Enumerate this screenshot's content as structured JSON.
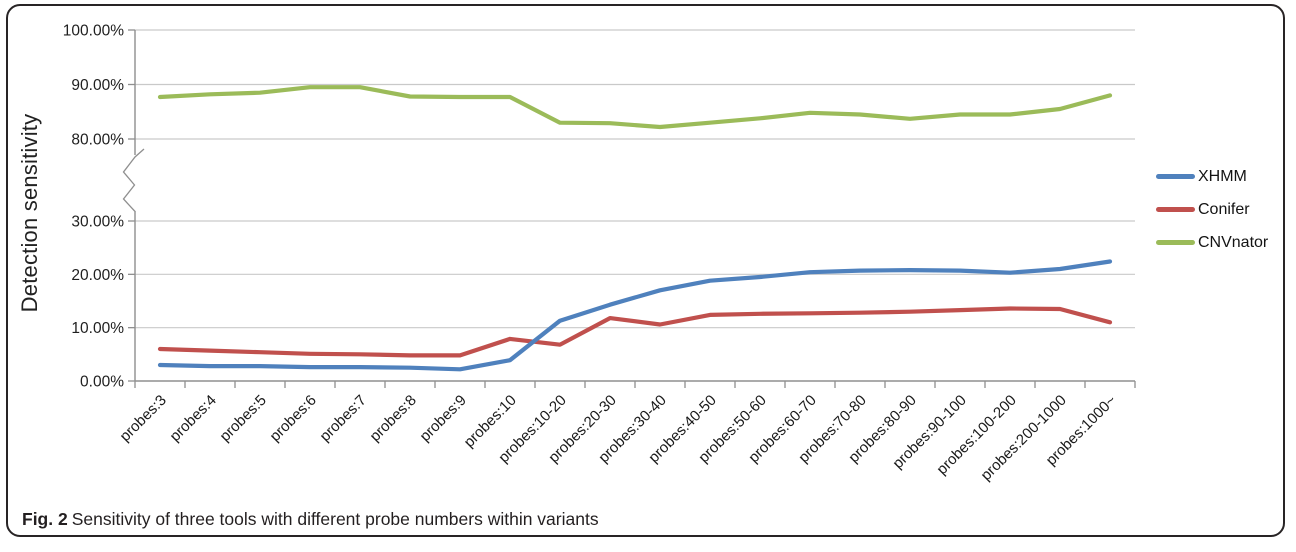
{
  "figure": {
    "caption_label": "Fig. 2",
    "caption_text": "Sensitivity of three tools with different probe numbers within variants"
  },
  "chart_data": {
    "type": "line",
    "title": "",
    "xlabel": "",
    "ylabel": "Detection sensitivity",
    "grid": true,
    "legend_position": "right",
    "axis_break": {
      "between_percent": [
        30,
        80
      ]
    },
    "y_ticks": [
      {
        "value": 0,
        "label": "0.00%"
      },
      {
        "value": 10,
        "label": "10.00%"
      },
      {
        "value": 20,
        "label": "20.00%"
      },
      {
        "value": 30,
        "label": "30.00%"
      },
      {
        "value": 80,
        "label": "80.00%"
      },
      {
        "value": 90,
        "label": "90.00%"
      },
      {
        "value": 100,
        "label": "100.00%"
      }
    ],
    "categories": [
      "probes:3",
      "probes:4",
      "probes:5",
      "probes:6",
      "probes:7",
      "probes:8",
      "probes:9",
      "probes:10",
      "probes:10-20",
      "probes:20-30",
      "probes:30-40",
      "probes:40-50",
      "probes:50-60",
      "probes:60-70",
      "probes:70-80",
      "probes:80-90",
      "probes:90-100",
      "probes:100-200",
      "probes:200-1000",
      "probes:1000~"
    ],
    "series": [
      {
        "name": "XHMM",
        "color": "#4F81BD",
        "values": [
          3.0,
          2.8,
          2.8,
          2.6,
          2.6,
          2.5,
          2.2,
          3.9,
          11.3,
          14.3,
          17.0,
          18.8,
          19.5,
          20.4,
          20.7,
          20.8,
          20.7,
          20.3,
          21.0,
          22.4
        ]
      },
      {
        "name": "Conifer",
        "color": "#C0504D",
        "values": [
          6.0,
          5.7,
          5.4,
          5.1,
          5.0,
          4.8,
          4.8,
          7.9,
          6.8,
          11.8,
          10.6,
          12.4,
          12.6,
          12.7,
          12.8,
          13.0,
          13.3,
          13.6,
          13.5,
          11.0
        ]
      },
      {
        "name": "CNVnator",
        "color": "#9BBB59",
        "values": [
          87.7,
          88.2,
          88.5,
          89.5,
          89.5,
          87.8,
          87.7,
          87.7,
          83.0,
          82.9,
          82.2,
          83.0,
          83.8,
          84.8,
          84.5,
          83.7,
          84.5,
          84.5,
          85.5,
          88.0
        ]
      }
    ]
  },
  "colors": {
    "axis": "#8f8f8f",
    "gridline": "#c9c9c9",
    "tick_text": "#1f1f1f"
  }
}
